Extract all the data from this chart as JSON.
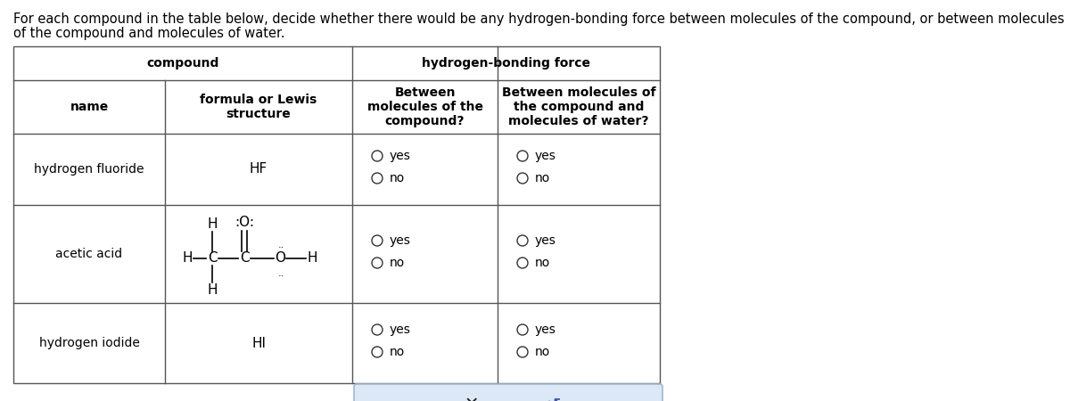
{
  "title_line1": "For each compound in the table below, decide whether there would be any hydrogen-bonding force between molecules of the compound, or between molecules",
  "title_line2": "of the compound and molecules of water.",
  "col_header1_left": "compound",
  "col_header1_right": "hydrogen-bonding force",
  "col_header2": [
    "name",
    "formula or Lewis\nstructure",
    "Between\nmolecules of the\ncompound?",
    "Between molecules of\nthe compound and\nmolecules of water?"
  ],
  "rows": [
    {
      "name": "hydrogen fluoride",
      "formula": "HF"
    },
    {
      "name": "acetic acid",
      "formula": "acetic_lewis"
    },
    {
      "name": "hydrogen iodide",
      "formula": "HI"
    }
  ],
  "bg_color": "#ffffff",
  "line_color": "#555555",
  "text_color": "#000000",
  "radio_color": "#333333",
  "button_bg": "#dce8f5",
  "button_border": "#a0b8d0"
}
